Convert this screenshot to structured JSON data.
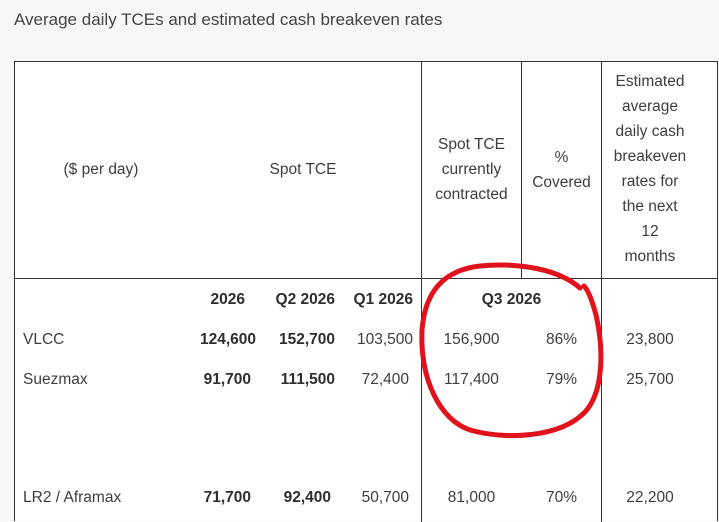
{
  "title": "Average daily TCEs and estimated cash breakeven rates",
  "header": {
    "unit_label": "($ per day)",
    "spot_tce": "Spot TCE",
    "spot_contracted": [
      "Spot TCE",
      "currently",
      "contracted"
    ],
    "pct_covered": [
      "%",
      "Covered"
    ],
    "breakeven": [
      "Estimated",
      "average",
      "daily cash",
      "breakeven",
      "rates for",
      "the next",
      "12",
      "months"
    ]
  },
  "subheader": {
    "c2026": "2026",
    "q2": "Q2 2026",
    "q1": "Q1 2026",
    "q3": "Q3 2026"
  },
  "rows": [
    {
      "name": "VLCC",
      "y2026": "124,600",
      "q2": "152,700",
      "q1": "103,500",
      "q3": "156,900",
      "pct": "86%",
      "be": "23,800"
    },
    {
      "name": "Suezmax",
      "y2026": "91,700",
      "q2": "111,500",
      "q1": "72,400",
      "q3": "117,400",
      "pct": "79%",
      "be": "25,700"
    },
    {
      "name": "LR2 / Aframax",
      "y2026": "71,700",
      "q2": "92,400",
      "q1": "50,700",
      "q3": "81,000",
      "pct": "70%",
      "be": "22,200"
    }
  ],
  "annotation_color": "#e0121c"
}
